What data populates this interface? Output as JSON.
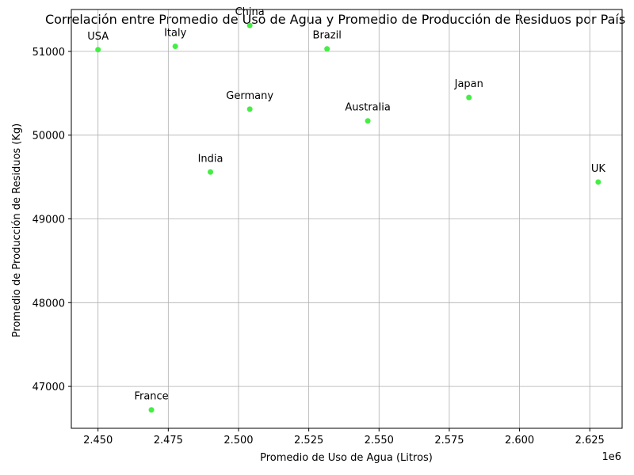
{
  "chart_data": {
    "type": "scatter",
    "title": "Correlación entre Promedio de Uso de Agua y Promedio de Producción de Residuos por País",
    "xlabel": "Promedio de Uso de Agua (Litros)",
    "ylabel": "Promedio de Producción de Residuos (Kg)",
    "x_offset_label": "1e6",
    "xlim": [
      2440500,
      2636500
    ],
    "ylim": [
      46500,
      51500
    ],
    "x_ticks": [
      2450000,
      2475000,
      2500000,
      2525000,
      2550000,
      2575000,
      2600000,
      2625000
    ],
    "x_tick_labels": [
      "2.450",
      "2.475",
      "2.500",
      "2.525",
      "2.550",
      "2.575",
      "2.600",
      "2.625"
    ],
    "y_ticks": [
      47000,
      48000,
      49000,
      50000,
      51000
    ],
    "y_tick_labels": [
      "47000",
      "48000",
      "49000",
      "50000",
      "51000"
    ],
    "grid": true,
    "marker_color": "#44ee44",
    "points": [
      {
        "label": "USA",
        "x": 2450000,
        "y": 51020
      },
      {
        "label": "Italy",
        "x": 2477500,
        "y": 51060
      },
      {
        "label": "China",
        "x": 2504000,
        "y": 51310
      },
      {
        "label": "Brazil",
        "x": 2531500,
        "y": 51030
      },
      {
        "label": "Germany",
        "x": 2504000,
        "y": 50310
      },
      {
        "label": "Australia",
        "x": 2546000,
        "y": 50170
      },
      {
        "label": "Japan",
        "x": 2582000,
        "y": 50450
      },
      {
        "label": "India",
        "x": 2490000,
        "y": 49560
      },
      {
        "label": "UK",
        "x": 2628000,
        "y": 49440
      },
      {
        "label": "France",
        "x": 2469000,
        "y": 46720
      }
    ]
  }
}
